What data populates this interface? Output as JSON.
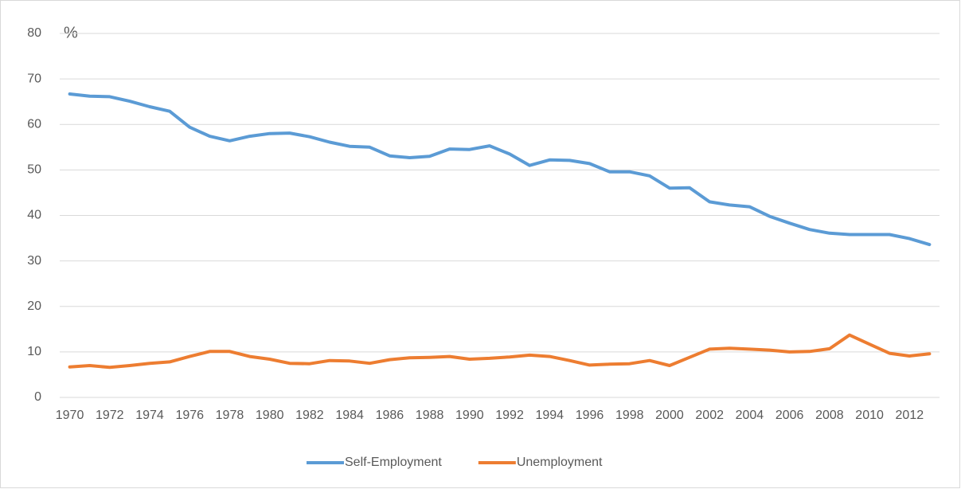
{
  "chart_data": {
    "type": "line",
    "y_label": "%",
    "categories": [
      "1970",
      null,
      "1972",
      null,
      "1974",
      null,
      "1976",
      null,
      "1978",
      null,
      "1980",
      null,
      "1982",
      null,
      "1984",
      null,
      "1986",
      null,
      "1988",
      null,
      "1990",
      null,
      "1992",
      null,
      "1994",
      null,
      "1996",
      null,
      "1998",
      null,
      "2000",
      null,
      "2002",
      null,
      "2004",
      null,
      "2006",
      null,
      "2008",
      null,
      "2010",
      null,
      "2012",
      null
    ],
    "series": [
      {
        "name": "Self-Employment",
        "color": "#5b9bd5",
        "values": [
          66.7,
          66.2,
          66.1,
          65.1,
          63.9,
          62.9,
          59.4,
          57.4,
          56.4,
          57.4,
          58.0,
          58.1,
          57.3,
          56.1,
          55.2,
          55.0,
          53.1,
          52.7,
          53.0,
          54.6,
          54.5,
          55.3,
          53.5,
          51.0,
          52.2,
          52.1,
          51.4,
          49.6,
          49.6,
          48.7,
          46.0,
          46.1,
          43.0,
          42.3,
          41.9,
          39.8,
          38.3,
          36.9,
          36.1,
          35.8,
          35.8,
          35.8,
          34.9,
          33.6
        ]
      },
      {
        "name": "Unemployment",
        "color": "#ed7d31",
        "values": [
          6.7,
          7.0,
          6.6,
          7.0,
          7.5,
          7.8,
          9.0,
          10.1,
          10.1,
          9.0,
          8.4,
          7.5,
          7.4,
          8.1,
          8.0,
          7.5,
          8.3,
          8.7,
          8.8,
          9.0,
          8.4,
          8.6,
          8.9,
          9.3,
          9.0,
          8.1,
          7.1,
          7.3,
          7.4,
          8.1,
          7.0,
          8.8,
          10.6,
          10.8,
          10.6,
          10.4,
          10.0,
          10.1,
          10.7,
          13.7,
          11.7,
          9.7,
          9.1,
          9.6
        ]
      }
    ],
    "ylim": [
      0,
      80
    ],
    "yticks": [
      0,
      10,
      20,
      30,
      40,
      50,
      60,
      70,
      80
    ],
    "grid": true,
    "legend": "bottom"
  }
}
